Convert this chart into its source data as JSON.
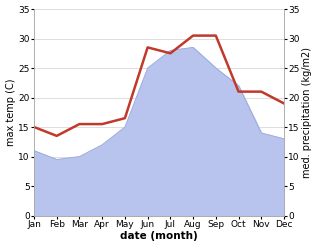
{
  "months": [
    "Jan",
    "Feb",
    "Mar",
    "Apr",
    "May",
    "Jun",
    "Jul",
    "Aug",
    "Sep",
    "Oct",
    "Nov",
    "Dec"
  ],
  "temperature": [
    15.0,
    13.5,
    15.5,
    15.5,
    16.5,
    28.5,
    27.5,
    30.5,
    30.5,
    21.0,
    21.0,
    19.0
  ],
  "precipitation": [
    11.0,
    9.5,
    10.0,
    12.0,
    15.0,
    25.0,
    28.0,
    28.5,
    25.0,
    22.0,
    14.0,
    13.0
  ],
  "temp_color": "#c0392b",
  "precip_fill_color": "#b8c4ee",
  "precip_edge_color": "#9aaad8",
  "ylim": [
    0,
    35
  ],
  "yticks": [
    0,
    5,
    10,
    15,
    20,
    25,
    30,
    35
  ],
  "ylabel_left": "max temp (C)",
  "ylabel_right": "med. precipitation (kg/m2)",
  "xlabel": "date (month)",
  "bg_color": "#ffffff",
  "grid_color": "#d0d0d0",
  "temp_linewidth": 1.8,
  "xlabel_fontsize": 7.5,
  "ylabel_fontsize": 7.0,
  "tick_fontsize": 6.5,
  "right_tick_labels": [
    "0",
    "5",
    "10",
    "15",
    "20",
    "25",
    "30",
    "35"
  ]
}
